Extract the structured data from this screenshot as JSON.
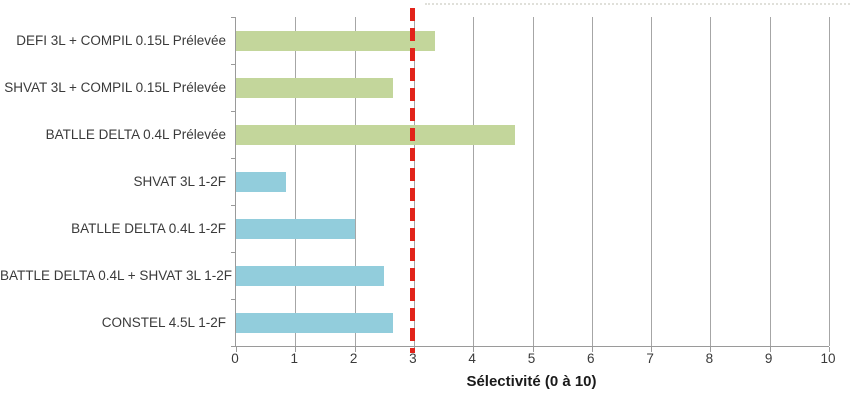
{
  "chart_data": {
    "type": "bar",
    "orientation": "horizontal",
    "title": "",
    "xlabel": "Sélectivité (0 à 10)",
    "ylabel": "",
    "xlim": [
      0,
      10
    ],
    "xticks": [
      "0",
      "1",
      "2",
      "3",
      "4",
      "5",
      "6",
      "7",
      "8",
      "9",
      "10"
    ],
    "grid": "vertical-on",
    "legend": "none",
    "categories": [
      "DEFI 3L + COMPIL 0.15L Prélevée",
      "SHVAT 3L + COMPIL 0.15L Prélevée",
      "BATLLE DELTA 0.4L Prélevée",
      "SHVAT 3L 1-2F",
      "BATLLE DELTA 0.4L 1-2F",
      "BATTLE DELTA 0.4L + SHVAT 3L 1-2F",
      "CONSTEL 4.5L 1-2F"
    ],
    "bars": [
      {
        "label": "DEFI 3L + COMPIL 0.15L Prélevée",
        "value": 3.35,
        "color": "#c3d69b"
      },
      {
        "label": "SHVAT 3L + COMPIL 0.15L Prélevée",
        "value": 2.65,
        "color": "#c3d69b"
      },
      {
        "label": "BATLLE DELTA 0.4L Prélevée",
        "value": 4.7,
        "color": "#c3d69b"
      },
      {
        "label": "SHVAT 3L 1-2F",
        "value": 0.85,
        "color": "#92cddc"
      },
      {
        "label": "BATLLE DELTA 0.4L 1-2F",
        "value": 2.0,
        "color": "#92cddc"
      },
      {
        "label": "BATTLE DELTA 0.4L + SHVAT 3L 1-2F",
        "value": 2.5,
        "color": "#92cddc"
      },
      {
        "label": "CONSTEL 4.5L 1-2F",
        "value": 2.65,
        "color": "#92cddc"
      }
    ],
    "reference_line": {
      "value": 3,
      "color": "#e2231a",
      "style": "dashed"
    },
    "colors": {
      "series_prelevee": "#c3d69b",
      "series_1_2f": "#92cddc",
      "reference": "#e2231a",
      "gridline": "#a6a6a6",
      "axis": "#9a9a9a",
      "text": "#3a3a3a"
    }
  }
}
